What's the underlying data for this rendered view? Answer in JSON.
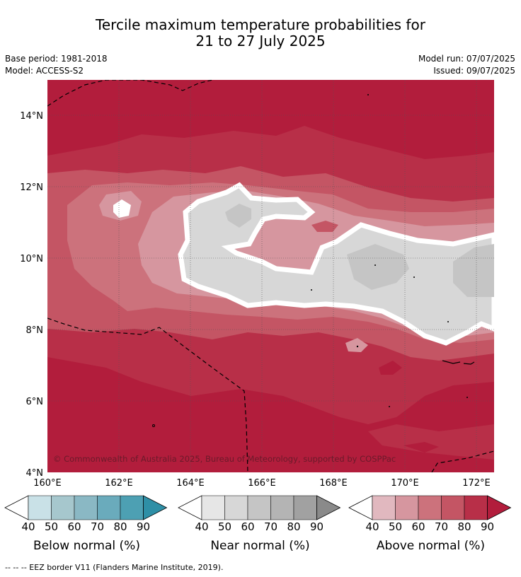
{
  "title": {
    "line1": "Tercile maximum temperature probabilities for",
    "line2": "21 to 27 July 2025"
  },
  "meta": {
    "base_period": "Base period: 1981-2018",
    "model": "Model: ACCESS-S2",
    "model_run": "Model run: 07/07/2025",
    "issued": "Issued: 09/07/2025"
  },
  "map": {
    "lat_labels": [
      "14°N",
      "12°N",
      "10°N",
      "8°N",
      "6°N",
      "4°N"
    ],
    "lon_labels": [
      "160°E",
      "162°E",
      "164°E",
      "166°E",
      "168°E",
      "170°E",
      "172°E"
    ],
    "copyright": "© Commonwealth of Australia 2025, Bureau of Meteorology, supported by COSPPac"
  },
  "legends": [
    {
      "name": "Below normal (%)",
      "ticks": [
        "40",
        "50",
        "60",
        "70",
        "80",
        "90"
      ],
      "colors": [
        "#ffffff",
        "#c9e1e7",
        "#a6c7cd",
        "#8ab8c4",
        "#6aabbc",
        "#4da0b3",
        "#2e8fa6"
      ]
    },
    {
      "name": "Near normal (%)",
      "ticks": [
        "40",
        "50",
        "60",
        "70",
        "80",
        "90"
      ],
      "colors": [
        "#ffffff",
        "#e6e6e6",
        "#d7d7d7",
        "#c5c5c5",
        "#b4b4b4",
        "#a1a1a1",
        "#8a8a8a"
      ]
    },
    {
      "name": "Above normal (%)",
      "ticks": [
        "40",
        "50",
        "60",
        "70",
        "80",
        "90"
      ],
      "colors": [
        "#ffffff",
        "#e1b8bf",
        "#d6969f",
        "#cc727c",
        "#c45564",
        "#b82f48",
        "#b21d3c"
      ]
    }
  ],
  "footer": "--  --  -- EEZ border V11 (Flanders Marine Institute, 2019)."
}
